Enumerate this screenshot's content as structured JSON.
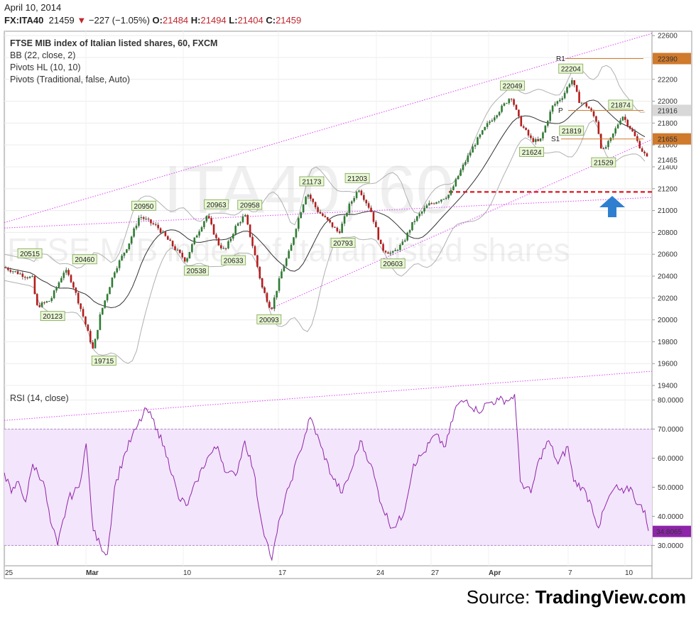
{
  "header": {
    "date": "April 10, 2014",
    "symbol": "FX:ITA40",
    "last": "21459",
    "change": "−227 (−1.05%)",
    "open_label": "O:",
    "open": "21484",
    "high_label": "H:",
    "high": "21494",
    "low_label": "L:",
    "low": "21404",
    "close_label": "C:",
    "close": "21459"
  },
  "legend": {
    "title": "FTSE MIB index of Italian listed shares, 60, FXCM",
    "bb": "BB (22, close, 2)",
    "pivots_hl": "Pivots HL (10, 10)",
    "pivots": "Pivots (Traditional, false, Auto)",
    "rsi": "RSI (14, close)"
  },
  "watermark": {
    "symbol": "ITA40, 60",
    "name": "FTSE MIB index of Italian listed shares"
  },
  "source": {
    "prefix": "Source: ",
    "brand": "TradingView.com"
  },
  "colors": {
    "up": "#2e7d32",
    "down": "#b71c1c",
    "bb": "#b0b0b0",
    "basis": "#333333",
    "trend": "#e040fb",
    "pivot": "#d07a2c",
    "dash": "#e0141e",
    "arrow": "#2f7fd0",
    "rsi": "#8e24aa",
    "rsi_band": "#f3e5fb"
  },
  "chart_data": [
    {
      "type": "candlestick",
      "title": "FTSE MIB index of Italian listed shares, 60, FXCM",
      "ylim": [
        19400,
        22640
      ],
      "y_ticks": [
        19400,
        19600,
        19800,
        20000,
        20200,
        20400,
        20600,
        20800,
        21000,
        21200,
        21400,
        21600,
        21800,
        22000,
        22200,
        22400,
        22600
      ],
      "x_ticks": [
        "25",
        "Mar",
        "10",
        "17",
        "24",
        "27",
        "Apr",
        "7",
        "10"
      ],
      "close_path": [
        [
          0,
          20480
        ],
        [
          30,
          20400
        ],
        [
          40,
          20380
        ],
        [
          45,
          20120
        ],
        [
          65,
          20180
        ],
        [
          85,
          20460
        ],
        [
          95,
          20350
        ],
        [
          110,
          20050
        ],
        [
          125,
          19720
        ],
        [
          135,
          20050
        ],
        [
          155,
          20450
        ],
        [
          175,
          20700
        ],
        [
          190,
          20950
        ],
        [
          215,
          20850
        ],
        [
          240,
          20650
        ],
        [
          255,
          20540
        ],
        [
          268,
          20750
        ],
        [
          285,
          20960
        ],
        [
          300,
          20700
        ],
        [
          310,
          20630
        ],
        [
          325,
          20850
        ],
        [
          338,
          20960
        ],
        [
          350,
          20650
        ],
        [
          362,
          20300
        ],
        [
          375,
          20093
        ],
        [
          390,
          20450
        ],
        [
          402,
          20650
        ],
        [
          412,
          20900
        ],
        [
          425,
          21170
        ],
        [
          440,
          21000
        ],
        [
          455,
          20900
        ],
        [
          470,
          20794
        ],
        [
          485,
          21050
        ],
        [
          498,
          21203
        ],
        [
          515,
          21000
        ],
        [
          530,
          20650
        ],
        [
          545,
          20604
        ],
        [
          560,
          20700
        ],
        [
          575,
          20900
        ],
        [
          595,
          21050
        ],
        [
          612,
          21100
        ],
        [
          626,
          21150
        ],
        [
          640,
          21350
        ],
        [
          660,
          21600
        ],
        [
          680,
          21800
        ],
        [
          700,
          21950
        ],
        [
          712,
          22049
        ],
        [
          725,
          21800
        ],
        [
          740,
          21650
        ],
        [
          752,
          21624
        ],
        [
          770,
          21950
        ],
        [
          785,
          22050
        ],
        [
          797,
          22204
        ],
        [
          808,
          22000
        ],
        [
          820,
          21950
        ],
        [
          832,
          21819
        ],
        [
          840,
          21530
        ],
        [
          852,
          21650
        ],
        [
          868,
          21874
        ],
        [
          880,
          21750
        ],
        [
          895,
          21560
        ],
        [
          905,
          21459
        ]
      ],
      "pivot_highs": [
        20515,
        20460,
        20950,
        20963,
        20958,
        21173,
        21203,
        22049,
        22204,
        21874
      ],
      "pivot_lows": [
        20123,
        19715,
        20538,
        20633,
        20093,
        20793,
        20603,
        21624,
        21819,
        21529
      ],
      "pivot_levels": [
        {
          "name": "R1",
          "value": 22390
        },
        {
          "name": "P",
          "value": 21916
        },
        {
          "name": "S1",
          "value": 21655
        }
      ],
      "last_price": 21465,
      "support_line": 21170
    },
    {
      "type": "line",
      "title": "RSI (14, close)",
      "ylim": [
        23,
        85
      ],
      "y_ticks": [
        30,
        40,
        50,
        60,
        70,
        80
      ],
      "overbought": 70,
      "oversold": 30,
      "last_value": "34.8065",
      "values": [
        [
          0,
          55
        ],
        [
          10,
          48
        ],
        [
          20,
          52
        ],
        [
          30,
          45
        ],
        [
          40,
          58
        ],
        [
          55,
          52
        ],
        [
          65,
          38
        ],
        [
          75,
          30
        ],
        [
          90,
          46
        ],
        [
          105,
          50
        ],
        [
          115,
          65
        ],
        [
          125,
          35
        ],
        [
          135,
          30
        ],
        [
          145,
          27
        ],
        [
          155,
          50
        ],
        [
          170,
          62
        ],
        [
          185,
          70
        ],
        [
          200,
          77
        ],
        [
          215,
          70
        ],
        [
          230,
          60
        ],
        [
          245,
          46
        ],
        [
          258,
          44
        ],
        [
          270,
          52
        ],
        [
          285,
          60
        ],
        [
          300,
          64
        ],
        [
          312,
          55
        ],
        [
          325,
          54
        ],
        [
          338,
          66
        ],
        [
          350,
          56
        ],
        [
          360,
          40
        ],
        [
          368,
          32
        ],
        [
          376,
          25
        ],
        [
          388,
          40
        ],
        [
          400,
          50
        ],
        [
          415,
          62
        ],
        [
          430,
          74
        ],
        [
          445,
          64
        ],
        [
          460,
          54
        ],
        [
          475,
          48
        ],
        [
          488,
          56
        ],
        [
          500,
          66
        ],
        [
          515,
          58
        ],
        [
          530,
          44
        ],
        [
          545,
          36
        ],
        [
          560,
          40
        ],
        [
          575,
          58
        ],
        [
          590,
          62
        ],
        [
          605,
          68
        ],
        [
          620,
          64
        ],
        [
          635,
          78
        ],
        [
          650,
          80
        ],
        [
          665,
          76
        ],
        [
          680,
          79
        ],
        [
          695,
          80
        ],
        [
          710,
          80
        ],
        [
          717,
          82
        ],
        [
          725,
          52
        ],
        [
          740,
          48
        ],
        [
          752,
          60
        ],
        [
          765,
          66
        ],
        [
          778,
          58
        ],
        [
          792,
          64
        ],
        [
          800,
          52
        ],
        [
          812,
          50
        ],
        [
          825,
          44
        ],
        [
          835,
          36
        ],
        [
          845,
          44
        ],
        [
          858,
          50
        ],
        [
          870,
          48
        ],
        [
          880,
          50
        ],
        [
          890,
          44
        ],
        [
          900,
          42
        ],
        [
          905,
          35
        ]
      ]
    }
  ]
}
